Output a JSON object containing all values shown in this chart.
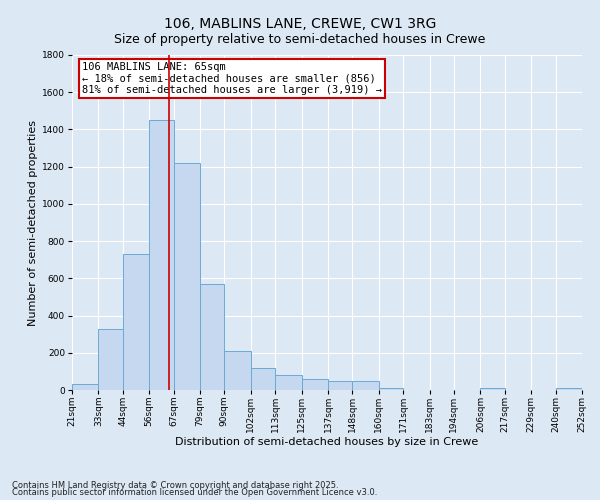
{
  "title": "106, MABLINS LANE, CREWE, CW1 3RG",
  "subtitle": "Size of property relative to semi-detached houses in Crewe",
  "xlabel": "Distribution of semi-detached houses by size in Crewe",
  "ylabel": "Number of semi-detached properties",
  "footnote1": "Contains HM Land Registry data © Crown copyright and database right 2025.",
  "footnote2": "Contains public sector information licensed under the Open Government Licence v3.0.",
  "annotation_title": "106 MABLINS LANE: 65sqm",
  "annotation_line1": "← 18% of semi-detached houses are smaller (856)",
  "annotation_line2": "81% of semi-detached houses are larger (3,919) →",
  "bar_left_edges": [
    21,
    33,
    44,
    56,
    67,
    79,
    90,
    102,
    113,
    125,
    137,
    148,
    160,
    171,
    183,
    194,
    206,
    217,
    229,
    240
  ],
  "bar_widths": [
    12,
    11,
    12,
    11,
    12,
    11,
    12,
    11,
    12,
    12,
    11,
    12,
    11,
    12,
    11,
    12,
    11,
    12,
    11,
    12
  ],
  "bar_heights": [
    30,
    330,
    730,
    1450,
    1220,
    570,
    210,
    120,
    80,
    60,
    50,
    50,
    10,
    0,
    0,
    0,
    10,
    0,
    0,
    10
  ],
  "bar_color": "#c5d8f0",
  "bar_edge_color": "#6aaad4",
  "vline_color": "#cc0000",
  "vline_x": 65,
  "ylim": [
    0,
    1800
  ],
  "yticks": [
    0,
    200,
    400,
    600,
    800,
    1000,
    1200,
    1400,
    1600,
    1800
  ],
  "xtick_labels": [
    "21sqm",
    "33sqm",
    "44sqm",
    "56sqm",
    "67sqm",
    "79sqm",
    "90sqm",
    "102sqm",
    "113sqm",
    "125sqm",
    "137sqm",
    "148sqm",
    "160sqm",
    "171sqm",
    "183sqm",
    "194sqm",
    "206sqm",
    "217sqm",
    "229sqm",
    "240sqm",
    "252sqm"
  ],
  "bg_color": "#dde8f5",
  "plot_bg_color": "#dde8f5",
  "grid_color": "#ffffff",
  "annotation_box_color": "#ffffff",
  "annotation_box_edge": "#cc0000",
  "title_fontsize": 10,
  "subtitle_fontsize": 9,
  "axis_label_fontsize": 8,
  "tick_fontsize": 6.5,
  "annotation_fontsize": 7.5,
  "footnote_fontsize": 6
}
